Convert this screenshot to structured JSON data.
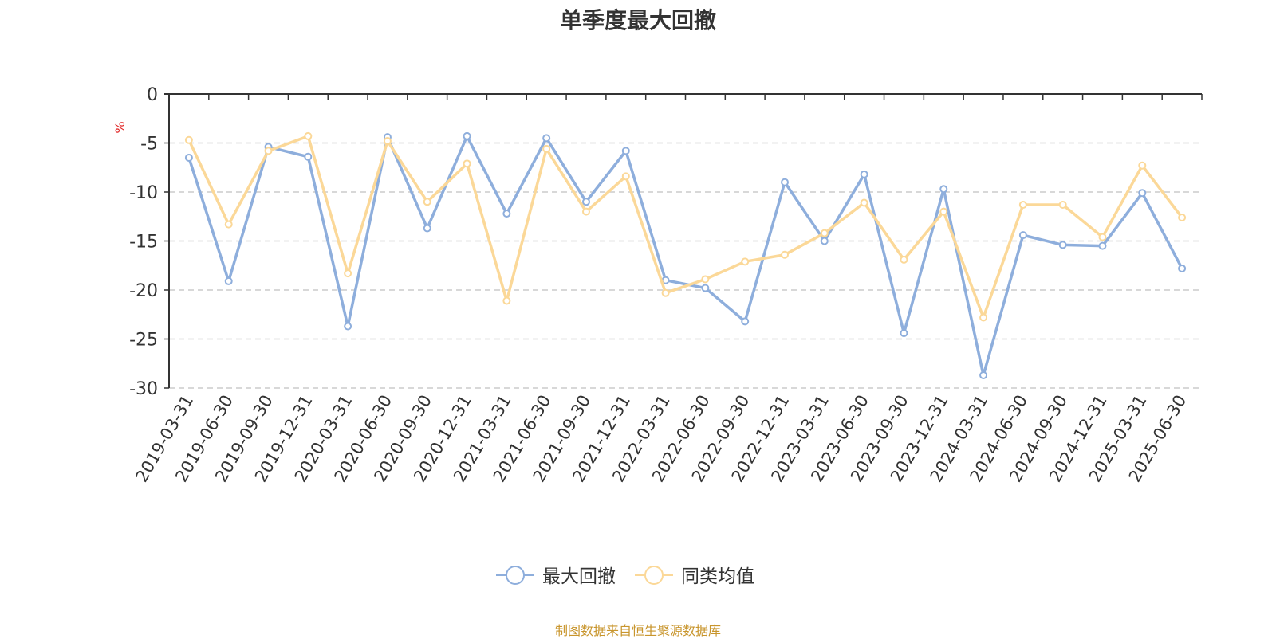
{
  "chart_data": {
    "type": "line",
    "title": "单季度最大回撤",
    "ylabel": "%",
    "ylim": [
      -30,
      0
    ],
    "yticks": [
      0,
      -5,
      -10,
      -15,
      -20,
      -25,
      -30
    ],
    "grid": true,
    "legend_position": "bottom-center",
    "categories": [
      "2019-03-31",
      "2019-06-30",
      "2019-09-30",
      "2019-12-31",
      "2020-03-31",
      "2020-06-30",
      "2020-09-30",
      "2020-12-31",
      "2021-03-31",
      "2021-06-30",
      "2021-09-30",
      "2021-12-31",
      "2022-03-31",
      "2022-06-30",
      "2022-09-30",
      "2022-12-31",
      "2023-03-31",
      "2023-06-30",
      "2023-09-30",
      "2023-12-31",
      "2024-03-31",
      "2024-06-30",
      "2024-09-30",
      "2024-12-31",
      "2025-03-31",
      "2025-06-30"
    ],
    "series": [
      {
        "name": "最大回撤",
        "color": "#8eaedc",
        "values": [
          -6.5,
          -19.1,
          -5.4,
          -6.4,
          -23.7,
          -4.4,
          -13.7,
          -4.3,
          -12.2,
          -4.5,
          -11.0,
          -5.8,
          -19.0,
          -19.8,
          -23.2,
          -9.0,
          -15.0,
          -8.2,
          -24.4,
          -9.7,
          -28.7,
          -14.4,
          -15.4,
          -15.5,
          -10.1,
          -17.8
        ]
      },
      {
        "name": "同类均值",
        "color": "#fbd898",
        "values": [
          -4.7,
          -13.3,
          -5.8,
          -4.3,
          -18.3,
          -4.8,
          -11.0,
          -7.1,
          -21.1,
          -5.6,
          -12.0,
          -8.4,
          -20.3,
          -18.9,
          -17.1,
          -16.4,
          -14.2,
          -11.1,
          -16.9,
          -12.0,
          -22.8,
          -11.3,
          -11.3,
          -14.6,
          -7.3,
          -12.6
        ]
      }
    ]
  },
  "footer": {
    "source_text": "制图数据来自恒生聚源数据库"
  }
}
